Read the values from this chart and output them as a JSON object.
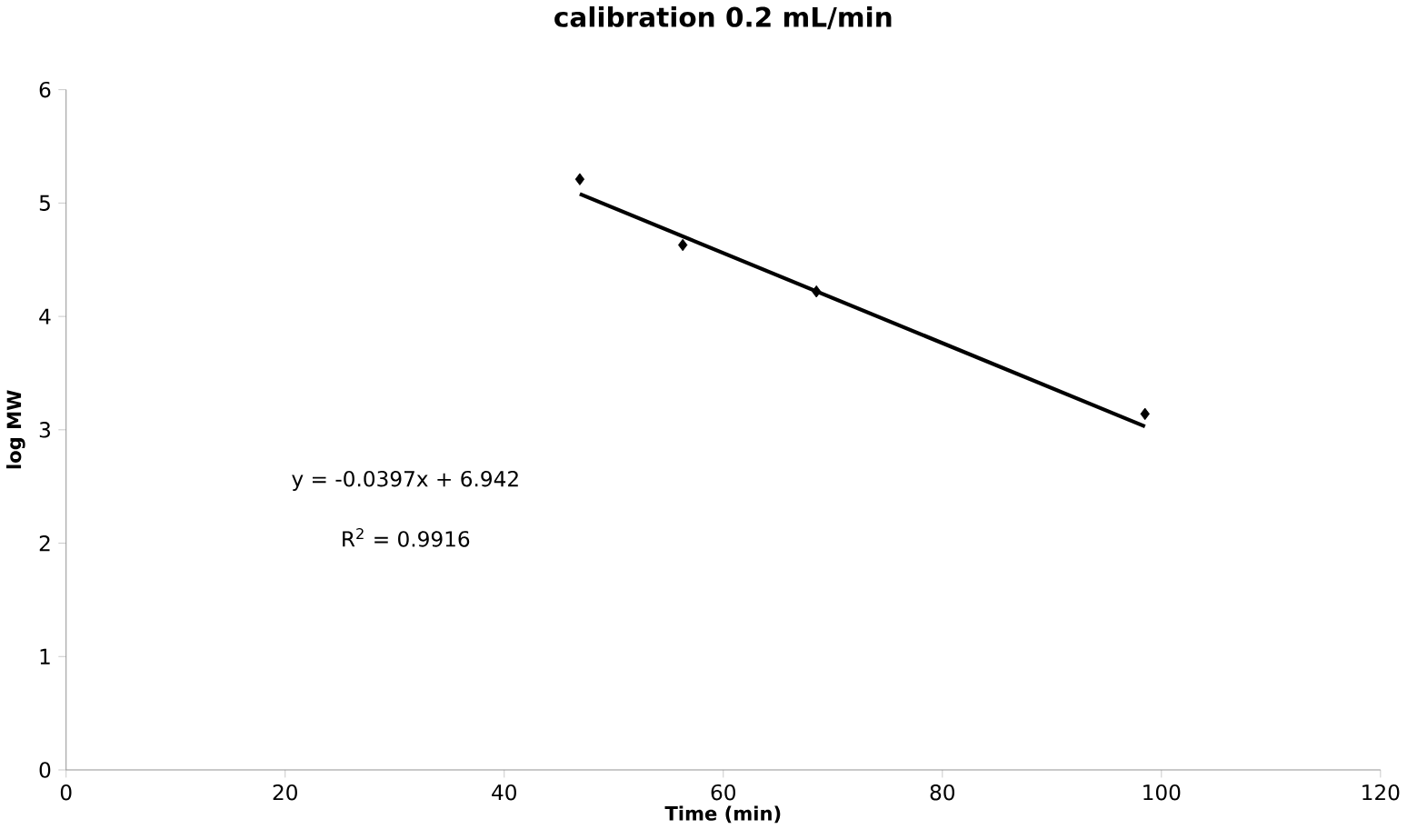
{
  "chart_data": {
    "type": "scatter",
    "title": "calibration 0.2 mL/min",
    "xlabel": "Time (min)",
    "ylabel": "log MW",
    "xlim": [
      0,
      120
    ],
    "ylim": [
      0,
      6
    ],
    "xticks": [
      0,
      20,
      40,
      60,
      80,
      100,
      120
    ],
    "yticks": [
      0,
      1,
      2,
      3,
      4,
      5,
      6
    ],
    "grid": false,
    "marker": "diamond",
    "annotations": [
      "y = -0.0397x + 6.942",
      "R$^{2}$ = 0.9916"
    ],
    "series": [
      {
        "color": "#000000",
        "x": [
          46.9,
          56.3,
          68.5,
          98.5
        ],
        "values": [
          5.21,
          4.63,
          4.22,
          3.14
        ]
      },
      {
        "type": "line",
        "color": "#000000",
        "marker": "none",
        "x": [
          46.9,
          98.5
        ],
        "values": [
          5.08,
          3.03
        ]
      }
    ]
  }
}
